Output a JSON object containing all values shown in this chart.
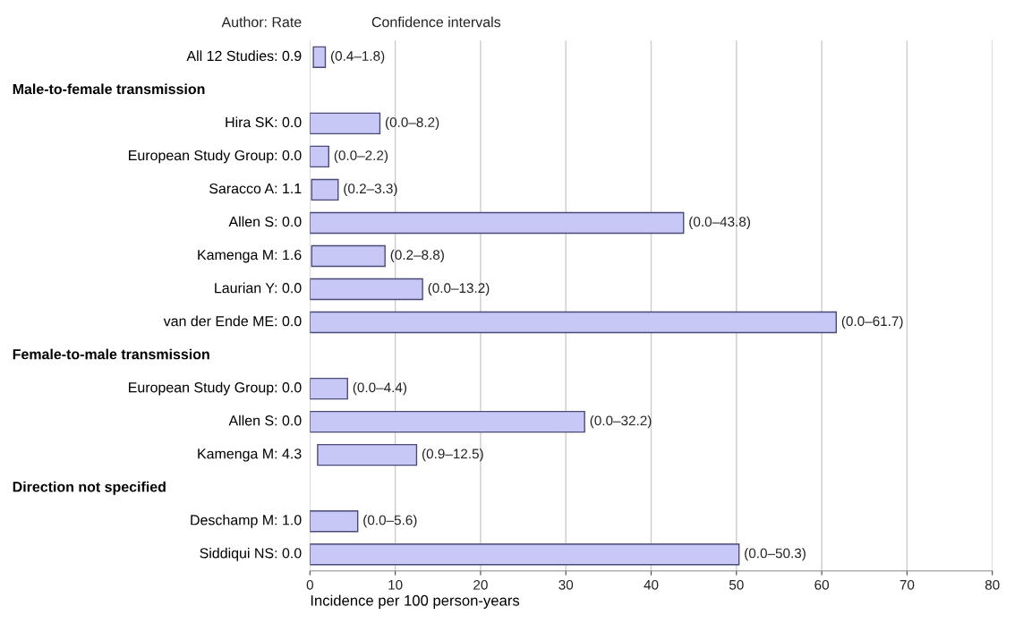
{
  "chart_data": {
    "type": "bar",
    "orientation": "horizontal",
    "xlabel": "Incidence per 100 person-years",
    "categories": [
      "All 12 Studies: 0.9",
      null,
      "Hira SK: 0.0",
      "European Study Group: 0.0",
      "Saracco A: 1.1",
      "Allen S: 0.0",
      "Kamenga M: 1.6",
      "Laurian Y: 0.0",
      "van der Ende ME: 0.0",
      null,
      "European Study Group: 0.0",
      "Allen S: 0.0",
      "Kamenga M: 4.3",
      null,
      "Deschamp M: 1.0",
      "Siddiqui NS: 0.0"
    ],
    "base": [
      0.4,
      null,
      0.0,
      0.0,
      0.2,
      0.0,
      0.2,
      0.0,
      0.0,
      null,
      0.0,
      0.0,
      0.9,
      null,
      0.0,
      0.0
    ],
    "values": [
      1.4,
      null,
      8.2,
      2.2,
      3.1,
      43.8,
      8.6,
      13.2,
      61.7,
      null,
      4.4,
      32.2,
      11.6,
      null,
      5.6,
      50.3
    ],
    "value_labels": [
      "(0.4–1.8)",
      null,
      "(0.0–8.2)",
      "(0.0–2.2)",
      "(0.2–3.3)",
      "(0.0–43.8)",
      "(0.2–8.8)",
      "(0.0–13.2)",
      "(0.0–61.7)",
      null,
      "(0.0–4.4)",
      "(0.0–32.2)",
      "(0.9–12.5)",
      null,
      "(0.0–5.6)",
      "(0.0–50.3)"
    ],
    "color": "#c8c8f6",
    "xlim": [
      0,
      80
    ],
    "xticks": [
      0,
      10,
      20,
      30,
      40,
      50,
      60,
      70,
      80
    ],
    "grid": "x",
    "annotations": [
      "Author: Rate",
      "Confidence intervals",
      "Male-to-female transmission",
      "Female-to-male transmission",
      "Direction not specified"
    ]
  }
}
